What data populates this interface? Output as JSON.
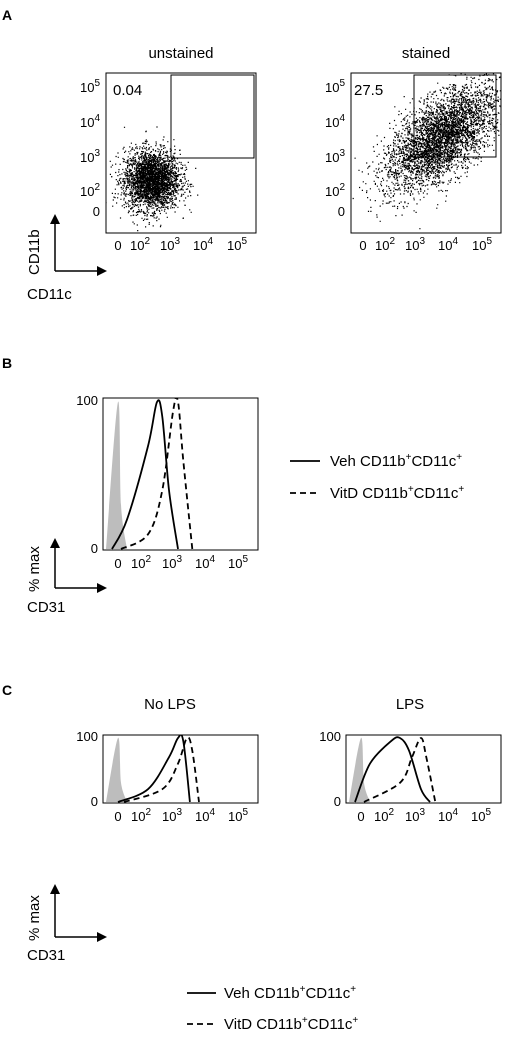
{
  "panels": {
    "A": {
      "letter": "A",
      "plots": [
        {
          "title": "unstained",
          "gate_value": "0.04"
        },
        {
          "title": "stained",
          "gate_value": "27.5"
        }
      ],
      "y_axis_label": "CD11b",
      "x_axis_label": "CD11c",
      "y_ticks": [
        {
          "base": "10",
          "exp": "5"
        },
        {
          "base": "10",
          "exp": "4"
        },
        {
          "base": "10",
          "exp": "3"
        },
        {
          "base": "10",
          "exp": "2"
        },
        {
          "base": "0",
          "exp": ""
        }
      ],
      "x_ticks": [
        {
          "base": "0",
          "exp": ""
        },
        {
          "base": "10",
          "exp": "2"
        },
        {
          "base": "10",
          "exp": "3"
        },
        {
          "base": "10",
          "exp": "4"
        },
        {
          "base": "10",
          "exp": "5"
        }
      ]
    },
    "B": {
      "letter": "B",
      "y_axis_label": "% max",
      "x_axis_label": "CD31",
      "y_ticks": [
        "100",
        "0"
      ],
      "x_ticks": [
        {
          "base": "0",
          "exp": ""
        },
        {
          "base": "10",
          "exp": "2"
        },
        {
          "base": "10",
          "exp": "3"
        },
        {
          "base": "10",
          "exp": "4"
        },
        {
          "base": "10",
          "exp": "5"
        }
      ]
    },
    "C": {
      "letter": "C",
      "plots": [
        {
          "title": "No LPS"
        },
        {
          "title": "LPS"
        }
      ],
      "y_axis_label": "% max",
      "x_axis_label": "CD31",
      "y_ticks": [
        "100",
        "0"
      ],
      "x_ticks": [
        {
          "base": "0",
          "exp": ""
        },
        {
          "base": "10",
          "exp": "2"
        },
        {
          "base": "10",
          "exp": "3"
        },
        {
          "base": "10",
          "exp": "4"
        },
        {
          "base": "10",
          "exp": "5"
        }
      ]
    }
  },
  "legend": [
    {
      "style": "solid",
      "prefix": "Veh CD11b",
      "sup1": "+",
      "mid": "CD11c",
      "sup2": "+"
    },
    {
      "style": "dashed",
      "prefix": "VitD CD11b",
      "sup1": "+",
      "mid": "CD11c",
      "sup2": "+"
    }
  ],
  "colors": {
    "isotype_fill": "#bdbdbd",
    "line": "#000000"
  },
  "chart_data": [
    {
      "type": "scatter",
      "panel": "A",
      "title": "unstained",
      "xlabel": "CD11c",
      "ylabel": "CD11b",
      "scale": "biexponential",
      "gate": {
        "x": [
          1000,
          100000
        ],
        "y": [
          1000,
          100000
        ],
        "percent": 0.04
      },
      "populations": [
        {
          "center_x": 60,
          "center_y": 60,
          "n_events": 3000
        }
      ]
    },
    {
      "type": "scatter",
      "panel": "A",
      "title": "stained",
      "xlabel": "CD11c",
      "ylabel": "CD11b",
      "scale": "biexponential",
      "gate": {
        "x": [
          1000,
          100000
        ],
        "y": [
          1000,
          100000
        ],
        "percent": 27.5
      },
      "populations": [
        {
          "center_x": 500,
          "center_y": 500,
          "n_events": 4000,
          "trend": "diagonal"
        }
      ]
    },
    {
      "type": "line",
      "panel": "B",
      "xlabel": "CD31",
      "ylabel": "% max",
      "ylim": [
        0,
        100
      ],
      "series": [
        {
          "name": "isotype",
          "x": [
            -20,
            0,
            10,
            30
          ],
          "y": [
            0,
            100,
            30,
            0
          ]
        },
        {
          "name": "Veh CD11b+CD11c+",
          "x": [
            -10,
            30,
            100,
            200,
            300,
            500,
            1000
          ],
          "y": [
            0,
            20,
            70,
            100,
            90,
            40,
            0
          ]
        },
        {
          "name": "VitD CD11b+CD11c+",
          "x": [
            10,
            100,
            300,
            700,
            1000,
            1500,
            3000
          ],
          "y": [
            0,
            10,
            40,
            95,
            100,
            60,
            0
          ]
        }
      ]
    },
    {
      "type": "line",
      "panel": "C",
      "title": "No LPS",
      "xlabel": "CD31",
      "ylabel": "% max",
      "ylim": [
        0,
        100
      ],
      "series": [
        {
          "name": "isotype",
          "x": [
            -20,
            0,
            10,
            30
          ],
          "y": [
            0,
            100,
            30,
            0
          ]
        },
        {
          "name": "Veh CD11b+CD11c+",
          "x": [
            0,
            100,
            500,
            1000,
            1500,
            2500
          ],
          "y": [
            0,
            20,
            70,
            100,
            95,
            0
          ]
        },
        {
          "name": "VitD CD11b+CD11c+",
          "x": [
            20,
            300,
            1000,
            2000,
            3000,
            5000
          ],
          "y": [
            0,
            20,
            60,
            100,
            80,
            0
          ]
        }
      ]
    },
    {
      "type": "line",
      "panel": "C",
      "title": "LPS",
      "xlabel": "CD31",
      "ylabel": "% max",
      "ylim": [
        0,
        100
      ],
      "series": [
        {
          "name": "isotype",
          "x": [
            -20,
            0,
            10,
            30
          ],
          "y": [
            0,
            100,
            30,
            0
          ]
        },
        {
          "name": "Veh CD11b+CD11c+",
          "x": [
            -10,
            30,
            100,
            200,
            400,
            1000,
            2000
          ],
          "y": [
            0,
            60,
            95,
            100,
            80,
            20,
            0
          ]
        },
        {
          "name": "VitD CD11b+CD11c+",
          "x": [
            10,
            200,
            500,
            1000,
            1500,
            3000
          ],
          "y": [
            0,
            30,
            70,
            100,
            70,
            0
          ]
        }
      ]
    }
  ]
}
